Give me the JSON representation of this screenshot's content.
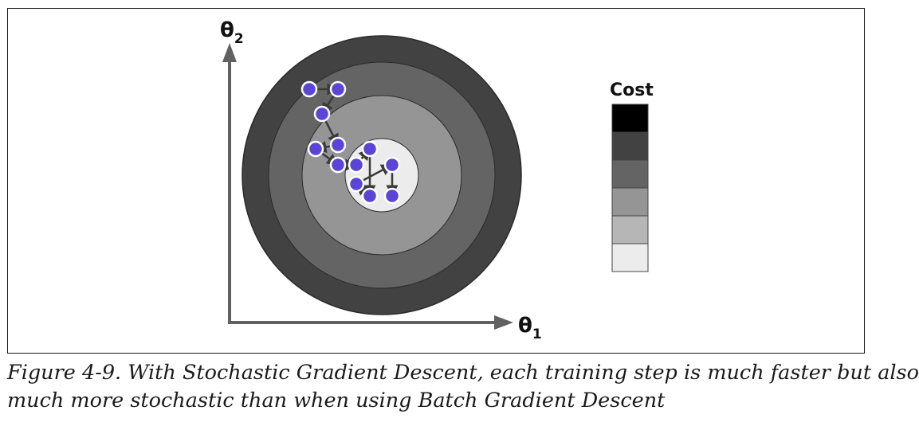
{
  "axes": {
    "y_label_main": "θ",
    "y_label_sub": "2",
    "x_label_main": "θ",
    "x_label_sub": "1"
  },
  "legend": {
    "title": "Cost",
    "swatches": [
      "#000000",
      "#424242",
      "#646464",
      "#959595",
      "#b6b6b6",
      "#ececec"
    ]
  },
  "contours": {
    "fills": [
      "#424242",
      "#646464",
      "#959595",
      "#b6b6b6",
      "#ececec"
    ]
  },
  "path": {
    "point_color": "#5b45d6",
    "arrow_color": "#3a3a3a"
  },
  "caption": {
    "line1": "Figure 4-9. With Stochastic Gradient Descent, each training step is much faster but also",
    "line2": "much more stochastic than when using Batch Gradient Descent"
  }
}
